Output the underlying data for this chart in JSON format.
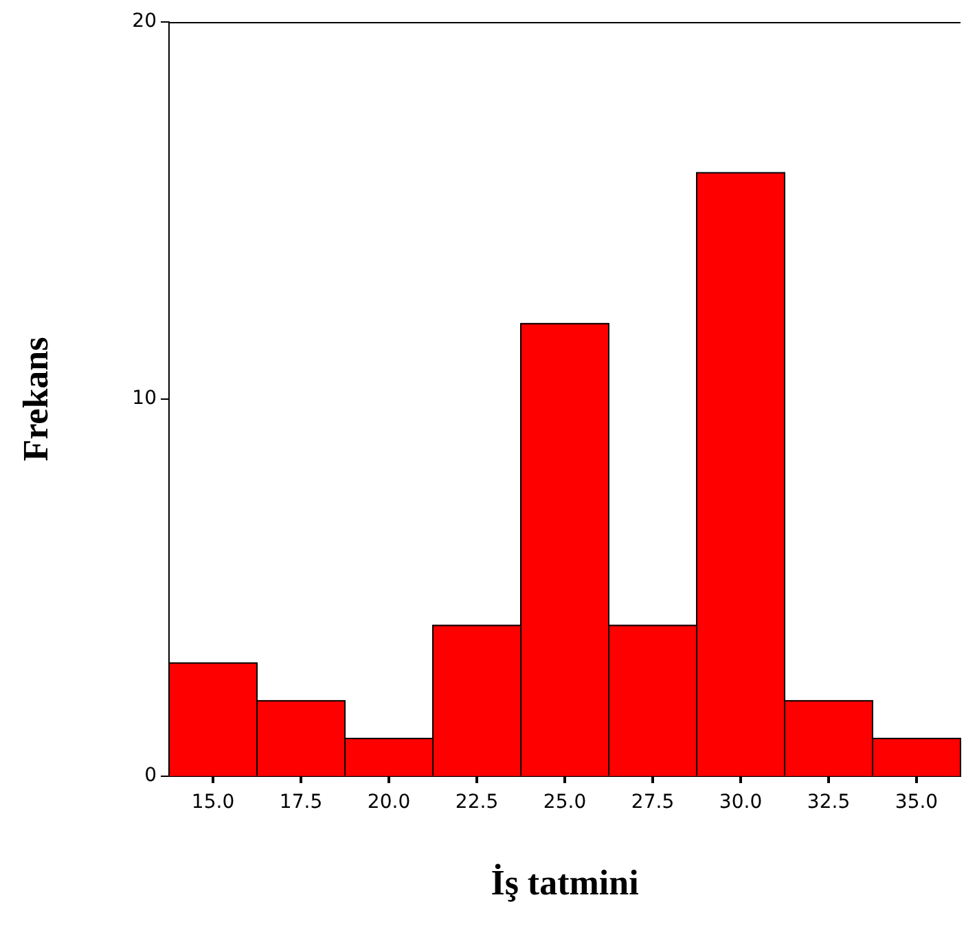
{
  "chart_data": {
    "type": "histogram",
    "xlabel": "İş tatmini",
    "ylabel": "Frekans",
    "bins": [
      13.75,
      16.25,
      18.75,
      21.25,
      23.75,
      26.25,
      28.75,
      31.25,
      33.75,
      36.25
    ],
    "values": [
      3,
      2,
      1,
      4,
      12,
      4,
      16,
      2,
      1
    ],
    "color": "#ff0000",
    "xlim": [
      13.75,
      36.25
    ],
    "xticks": [
      {
        "value": 15,
        "label": "15.0"
      },
      {
        "value": 17.5,
        "label": "17.5"
      },
      {
        "value": 20,
        "label": "20.0"
      },
      {
        "value": 22.5,
        "label": "22.5"
      },
      {
        "value": 25,
        "label": "25.0"
      },
      {
        "value": 27.5,
        "label": "27.5"
      },
      {
        "value": 30,
        "label": "30.0"
      },
      {
        "value": 32.5,
        "label": "32.5"
      },
      {
        "value": 35,
        "label": "35.0"
      }
    ],
    "ylim": [
      0,
      20
    ],
    "yticks": [
      0,
      10,
      20
    ],
    "grid": false,
    "legend": false
  }
}
